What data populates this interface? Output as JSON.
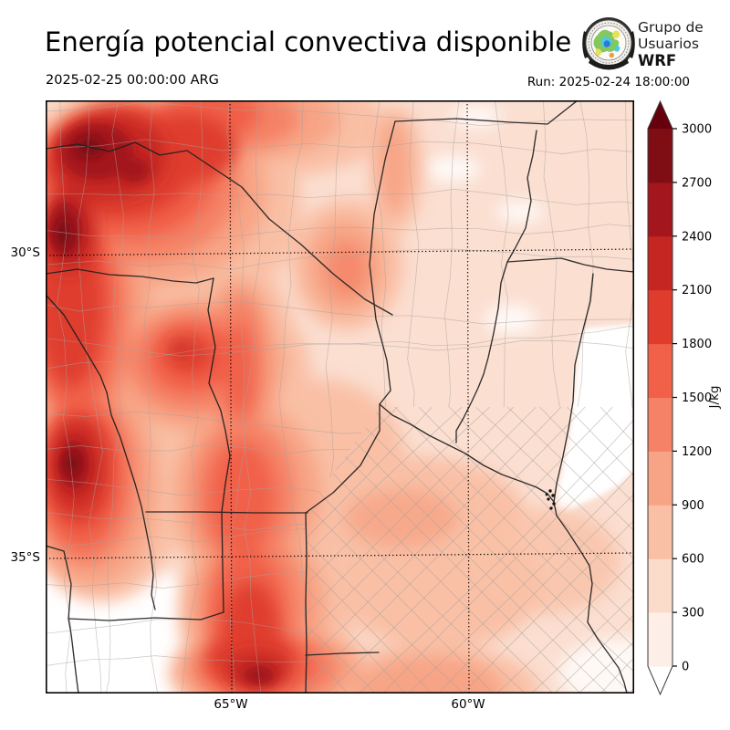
{
  "header": {
    "title": "Energía potencial convectiva disponible",
    "logo": {
      "line1": "Grupo de",
      "line2": "Usuarios",
      "line3": "WRF"
    }
  },
  "subheader": {
    "valid_time": "2025-02-25 00:00:00 ARG",
    "run_time": "Run: 2025-02-24 18:00:00"
  },
  "map": {
    "lat_labels": [
      "30°S",
      "35°S"
    ],
    "lon_labels": [
      "65°W",
      "60°W"
    ]
  },
  "colorbar": {
    "unit": "J/kg",
    "tick_values": [
      0,
      300,
      600,
      900,
      1200,
      1500,
      1800,
      2100,
      2400,
      2700,
      3000
    ],
    "band_colors": [
      "#fdefe7",
      "#fbdccb",
      "#f9c0a6",
      "#f7a486",
      "#f58266",
      "#f16048",
      "#df3c2d",
      "#c52622",
      "#a3161d",
      "#7f0d14"
    ],
    "over_color": "#67000d",
    "under_color": "#ffffff"
  },
  "field": {
    "name_levels_jkg": [
      0,
      300,
      600,
      900,
      1200,
      1500,
      1800,
      2100,
      2400,
      2700,
      3000
    ],
    "base_color": "#fbdfd1",
    "zero_color": "#ffffff"
  }
}
